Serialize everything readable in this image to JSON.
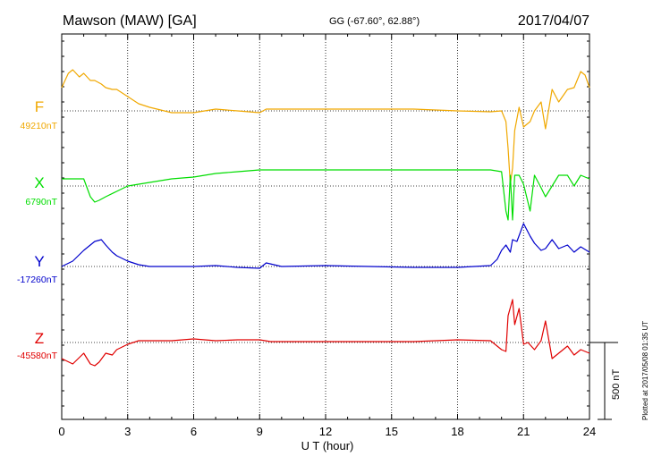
{
  "chart_data": {
    "type": "line",
    "title": "Mawson (MAW)  [GA]",
    "coords": "GG (-67.60°,  62.88°)",
    "date": "2017/04/07",
    "xlabel": "U T (hour)",
    "xlim": [
      0,
      24
    ],
    "xticks": [
      "0",
      "3",
      "6",
      "9",
      "12",
      "15",
      "18",
      "21",
      "24"
    ],
    "scale_label": "500 nT",
    "scale_nT": 500,
    "plotted_note": "Plotted at 2017/05/08 01:35 UT",
    "grid": true,
    "series": [
      {
        "name": "F",
        "baseline_label": "49210nT",
        "baseline_nT": 49210,
        "color": "#f0a800",
        "x": [
          0,
          0.3,
          0.5,
          0.8,
          1.0,
          1.3,
          1.5,
          1.8,
          2.0,
          2.3,
          2.5,
          3.0,
          3.5,
          4.0,
          5.0,
          6.0,
          7.0,
          8.0,
          9.0,
          9.3,
          10.0,
          12.0,
          14.0,
          16.0,
          18.0,
          19.5,
          20.0,
          20.2,
          20.3,
          20.4,
          20.5,
          20.6,
          20.8,
          21.0,
          21.3,
          21.5,
          21.8,
          22.0,
          22.3,
          22.6,
          23.0,
          23.3,
          23.6,
          23.8,
          24.0
        ],
        "y": [
          49340,
          49420,
          49440,
          49400,
          49420,
          49380,
          49380,
          49360,
          49340,
          49330,
          49330,
          49290,
          49250,
          49230,
          49200,
          49200,
          49220,
          49210,
          49200,
          49220,
          49220,
          49220,
          49220,
          49220,
          49210,
          49205,
          49210,
          49150,
          49000,
          48800,
          48890,
          49100,
          49230,
          49120,
          49150,
          49210,
          49260,
          49110,
          49330,
          49260,
          49330,
          49340,
          49430,
          49410,
          49340
        ]
      },
      {
        "name": "X",
        "baseline_label": "6790nT",
        "baseline_nT": 6790,
        "color": "#00dd00",
        "x": [
          0,
          0.5,
          1.0,
          1.3,
          1.5,
          1.7,
          2.0,
          2.5,
          3.0,
          3.5,
          4.0,
          5.0,
          6.0,
          7.0,
          8.0,
          9.0,
          9.3,
          10.0,
          12.0,
          14.0,
          16.0,
          18.0,
          19.5,
          20.0,
          20.2,
          20.3,
          20.4,
          20.5,
          20.6,
          20.8,
          21.0,
          21.3,
          21.5,
          21.8,
          22.0,
          22.3,
          22.6,
          23.0,
          23.3,
          23.6,
          24.0
        ],
        "y": [
          6830,
          6830,
          6830,
          6730,
          6700,
          6710,
          6730,
          6760,
          6790,
          6800,
          6810,
          6830,
          6840,
          6860,
          6870,
          6880,
          6880,
          6880,
          6880,
          6880,
          6880,
          6880,
          6880,
          6870,
          6650,
          6600,
          6850,
          6600,
          6850,
          6850,
          6800,
          6650,
          6850,
          6780,
          6730,
          6790,
          6850,
          6850,
          6790,
          6850,
          6830
        ]
      },
      {
        "name": "Y",
        "baseline_label": "-17260nT",
        "baseline_nT": -17260,
        "color": "#0000cc",
        "x": [
          0,
          0.5,
          1.0,
          1.5,
          1.8,
          2.0,
          2.3,
          2.5,
          3.0,
          3.5,
          4.0,
          5.0,
          6.0,
          7.0,
          8.0,
          9.0,
          9.3,
          10.0,
          12.0,
          14.0,
          16.0,
          18.0,
          19.5,
          19.8,
          20.0,
          20.2,
          20.4,
          20.5,
          20.7,
          21.0,
          21.3,
          21.5,
          21.8,
          22.0,
          22.3,
          22.6,
          23.0,
          23.3,
          23.6,
          24.0
        ],
        "y": [
          -17260,
          -17230,
          -17170,
          -17120,
          -17110,
          -17140,
          -17180,
          -17200,
          -17230,
          -17250,
          -17260,
          -17260,
          -17260,
          -17255,
          -17265,
          -17270,
          -17240,
          -17260,
          -17255,
          -17260,
          -17265,
          -17265,
          -17255,
          -17220,
          -17170,
          -17140,
          -17180,
          -17110,
          -17120,
          -17020,
          -17090,
          -17130,
          -17170,
          -17160,
          -17110,
          -17160,
          -17140,
          -17180,
          -17150,
          -17180
        ]
      },
      {
        "name": "Z",
        "baseline_label": "-45580nT",
        "baseline_nT": -45580,
        "color": "#e00000",
        "x": [
          0,
          0.5,
          1.0,
          1.3,
          1.5,
          1.7,
          2.0,
          2.3,
          2.5,
          3.0,
          3.5,
          4.0,
          5.0,
          6.0,
          7.0,
          8.0,
          9.0,
          9.5,
          10.0,
          12.0,
          14.0,
          16.0,
          18.0,
          19.5,
          20.0,
          20.2,
          20.3,
          20.5,
          20.6,
          20.8,
          21.0,
          21.2,
          21.5,
          21.8,
          22.0,
          22.3,
          22.6,
          23.0,
          23.3,
          23.6,
          24.0
        ],
        "y": [
          -45670,
          -45700,
          -45640,
          -45700,
          -45710,
          -45690,
          -45640,
          -45650,
          -45620,
          -45590,
          -45570,
          -45570,
          -45570,
          -45560,
          -45570,
          -45565,
          -45565,
          -45575,
          -45575,
          -45575,
          -45575,
          -45575,
          -45565,
          -45570,
          -45620,
          -45630,
          -45430,
          -45340,
          -45480,
          -45390,
          -45590,
          -45580,
          -45620,
          -45570,
          -45460,
          -45670,
          -45640,
          -45600,
          -45650,
          -45620,
          -45640
        ]
      }
    ]
  }
}
